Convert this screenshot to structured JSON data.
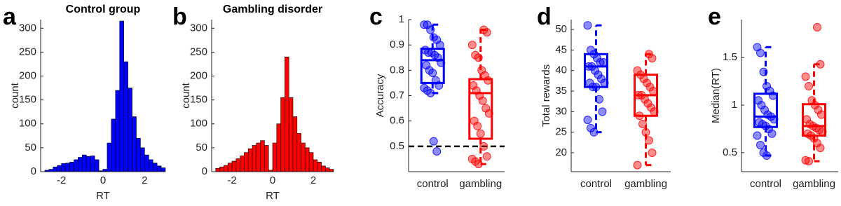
{
  "chart_data": [
    {
      "type": "histogram",
      "label": "a",
      "title": "Control group",
      "x_label": "RT",
      "y_label": "count",
      "color": "#0000ff",
      "bins": [
        -2.8,
        -2.6,
        -2.4,
        -2.2,
        -2.0,
        -1.8,
        -1.6,
        -1.4,
        -1.2,
        -1.0,
        -0.8,
        -0.6,
        -0.4,
        -0.2,
        0.0,
        0.2,
        0.4,
        0.6,
        0.8,
        1.0,
        1.2,
        1.4,
        1.6,
        1.8,
        2.0,
        2.2,
        2.4,
        2.6,
        2.8,
        3.0
      ],
      "counts": [
        3,
        5,
        10,
        13,
        17,
        18,
        20,
        25,
        30,
        35,
        32,
        33,
        25,
        2,
        5,
        60,
        110,
        170,
        315,
        230,
        175,
        115,
        70,
        50,
        35,
        25,
        18,
        12,
        8
      ],
      "xlim": [
        -3,
        3
      ],
      "xticks": [
        -2,
        0,
        2
      ],
      "ylim": [
        0,
        318
      ],
      "yticks": [
        0,
        50,
        100,
        150,
        200,
        250,
        300
      ]
    },
    {
      "type": "histogram",
      "label": "b",
      "title": "Gambling disorder",
      "x_label": "RT",
      "y_label": "count",
      "color": "#ff0000",
      "bins": [
        -2.8,
        -2.6,
        -2.4,
        -2.2,
        -2.0,
        -1.8,
        -1.6,
        -1.4,
        -1.2,
        -1.0,
        -0.8,
        -0.6,
        -0.4,
        -0.2,
        0.0,
        0.2,
        0.4,
        0.6,
        0.8,
        1.0,
        1.2,
        1.4,
        1.6,
        1.8,
        2.0,
        2.2,
        2.4,
        2.6,
        2.8,
        3.0
      ],
      "counts": [
        7,
        10,
        13,
        18,
        22,
        27,
        33,
        40,
        48,
        55,
        60,
        65,
        55,
        3,
        60,
        100,
        155,
        240,
        155,
        115,
        80,
        60,
        50,
        40,
        25,
        20,
        12,
        8,
        5
      ],
      "xlim": [
        -3,
        3
      ],
      "xticks": [
        -2,
        0,
        2
      ],
      "ylim": [
        0,
        318
      ],
      "yticks": [
        0,
        50,
        100,
        150,
        200,
        250,
        300
      ]
    },
    {
      "type": "box",
      "label": "c",
      "y_label": "Accuracy",
      "ylim": [
        0.4,
        1.0
      ],
      "yticks": [
        0.5,
        0.6,
        0.7,
        0.8,
        0.9,
        1
      ],
      "refline": 0.5,
      "series": [
        {
          "name": "control",
          "color": "#0000ff",
          "q1": 0.75,
          "median": 0.84,
          "q3": 0.885,
          "whisker_low": 0.71,
          "whisker_high": 0.98,
          "points": [
            0.98,
            0.98,
            0.96,
            0.93,
            0.92,
            0.9,
            0.88,
            0.87,
            0.87,
            0.86,
            0.85,
            0.83,
            0.82,
            0.8,
            0.79,
            0.76,
            0.74,
            0.73,
            0.72,
            0.71,
            0.52,
            0.48
          ]
        },
        {
          "name": "gambling",
          "color": "#ff0000",
          "q1": 0.53,
          "median": 0.71,
          "q3": 0.765,
          "whisker_low": 0.43,
          "whisker_high": 0.96,
          "points": [
            0.96,
            0.95,
            0.9,
            0.86,
            0.85,
            0.8,
            0.78,
            0.76,
            0.74,
            0.72,
            0.7,
            0.68,
            0.65,
            0.63,
            0.6,
            0.58,
            0.55,
            0.5,
            0.46,
            0.45,
            0.44,
            0.43
          ]
        }
      ]
    },
    {
      "type": "box",
      "label": "d",
      "y_label": "Total rewards",
      "ylim": [
        15.4,
        52.4
      ],
      "yticks": [
        20,
        25,
        30,
        35,
        40,
        45,
        50
      ],
      "series": [
        {
          "name": "control",
          "color": "#0000ff",
          "q1": 36,
          "median": 41,
          "q3": 44,
          "whisker_low": 25,
          "whisker_high": 51,
          "points": [
            51,
            45,
            44,
            43,
            42,
            42,
            41,
            41,
            40,
            39,
            38,
            37,
            37,
            36,
            36,
            33,
            30,
            28,
            26,
            25
          ]
        },
        {
          "name": "gambling",
          "color": "#ff0000",
          "q1": 29,
          "median": 34,
          "q3": 39,
          "whisker_low": 17,
          "whisker_high": 44,
          "points": [
            44,
            43,
            40,
            39,
            38,
            37,
            36,
            35,
            34,
            34,
            33,
            32,
            31,
            30,
            29,
            27,
            25,
            23,
            20,
            17
          ]
        }
      ]
    },
    {
      "type": "box",
      "label": "e",
      "y_label": "Median(RT)",
      "ylim": [
        0.3,
        1.9
      ],
      "yticks": [
        0.5,
        1,
        1.5
      ],
      "series": [
        {
          "name": "control",
          "color": "#0000ff",
          "q1": 0.77,
          "median": 0.88,
          "q3": 1.12,
          "whisker_low": 0.47,
          "whisker_high": 1.61,
          "points": [
            1.61,
            1.55,
            1.35,
            1.2,
            1.15,
            1.1,
            1.05,
            1.0,
            0.95,
            0.9,
            0.88,
            0.85,
            0.82,
            0.8,
            0.78,
            0.75,
            0.7,
            0.68,
            0.58,
            0.5,
            0.47
          ]
        },
        {
          "name": "gambling",
          "color": "#ff0000",
          "q1": 0.68,
          "median": 0.78,
          "q3": 1.01,
          "whisker_low": 0.41,
          "whisker_high": 1.43,
          "points": [
            1.82,
            1.43,
            1.3,
            1.2,
            1.05,
            1.0,
            0.95,
            0.9,
            0.85,
            0.8,
            0.78,
            0.76,
            0.74,
            0.72,
            0.7,
            0.68,
            0.65,
            0.6,
            0.55,
            0.42,
            0.41
          ]
        }
      ]
    }
  ]
}
